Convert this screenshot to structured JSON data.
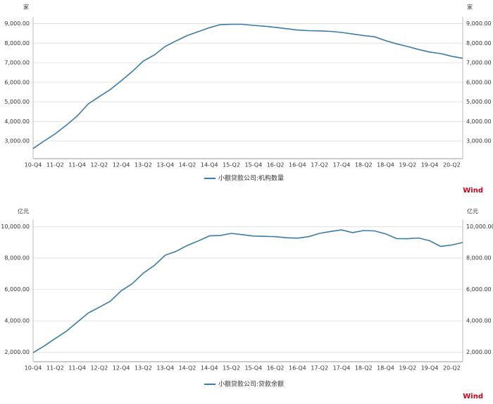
{
  "chart_data": [
    {
      "type": "line",
      "y_unit": "家",
      "categories": [
        "10-Q4",
        null,
        "11-Q2",
        null,
        "11-Q4",
        null,
        "12-Q2",
        null,
        "12-Q4",
        null,
        "13-Q2",
        null,
        "13-Q4",
        null,
        "14-Q2",
        null,
        "14-Q4",
        null,
        "15-Q2",
        null,
        "15-Q4",
        null,
        "16-Q2",
        null,
        "16-Q4",
        null,
        "17-Q2",
        null,
        "17-Q4",
        null,
        "18-Q2",
        null,
        "18-Q4",
        null,
        "19-Q2",
        null,
        "19-Q4",
        null,
        "20-Q2",
        null
      ],
      "series": [
        {
          "name": "小额贷款公司:机构数量",
          "color": "#3a7ca5",
          "values": [
            2614,
            3000,
            3366,
            3800,
            4282,
            4893,
            5267,
            5629,
            6080,
            6555,
            7086,
            7398,
            7839,
            8127,
            8394,
            8591,
            8791,
            8951,
            8965,
            8965,
            8910,
            8867,
            8810,
            8741,
            8673,
            8643,
            8629,
            8604,
            8551,
            8471,
            8394,
            8328,
            8133,
            7967,
            7829,
            7680,
            7551,
            7470,
            7333,
            7227
          ]
        }
      ],
      "ylim": [
        2100,
        9200
      ],
      "yticks": [
        {
          "value": 3000,
          "label": "3,000.00"
        },
        {
          "value": 4000,
          "label": "4,000.00"
        },
        {
          "value": 5000,
          "label": "5,000.00"
        },
        {
          "value": 6000,
          "label": "6,000.00"
        },
        {
          "value": 7000,
          "label": "7,000.00"
        },
        {
          "value": 8000,
          "label": "8,000.00"
        },
        {
          "value": 9000,
          "label": "9,000.00"
        }
      ],
      "grid": true,
      "source": "Wind"
    },
    {
      "type": "line",
      "y_unit": "亿元",
      "categories": [
        "10-Q4",
        null,
        "11-Q2",
        null,
        "11-Q4",
        null,
        "12-Q2",
        null,
        "12-Q4",
        null,
        "13-Q2",
        null,
        "13-Q4",
        null,
        "14-Q2",
        null,
        "14-Q4",
        null,
        "15-Q2",
        null,
        "15-Q4",
        null,
        "16-Q2",
        null,
        "16-Q4",
        null,
        "17-Q2",
        null,
        "17-Q4",
        null,
        "18-Q2",
        null,
        "18-Q4",
        null,
        "19-Q2",
        null,
        "19-Q4",
        null,
        "20-Q2",
        null
      ],
      "series": [
        {
          "name": "小额贷款公司:贷款余额",
          "color": "#3a7ca5",
          "values": [
            1975,
            2400,
            2875,
            3335,
            3915,
            4500,
            4870,
            5250,
            5921,
            6370,
            7043,
            7535,
            8191,
            8438,
            8811,
            9100,
            9420,
            9450,
            9580,
            9500,
            9412,
            9390,
            9370,
            9300,
            9273,
            9370,
            9580,
            9700,
            9799,
            9630,
            9760,
            9740,
            9550,
            9250,
            9240,
            9290,
            9109,
            8750,
            8840,
            9000
          ]
        }
      ],
      "ylim": [
        1400,
        10300
      ],
      "yticks": [
        {
          "value": 2000,
          "label": "2,000.00"
        },
        {
          "value": 4000,
          "label": "4,000.00"
        },
        {
          "value": 6000,
          "label": "6,000.00"
        },
        {
          "value": 8000,
          "label": "8,000.00"
        },
        {
          "value": 10000,
          "label": "10,000.00"
        }
      ],
      "grid": true,
      "source": "Wind"
    }
  ]
}
